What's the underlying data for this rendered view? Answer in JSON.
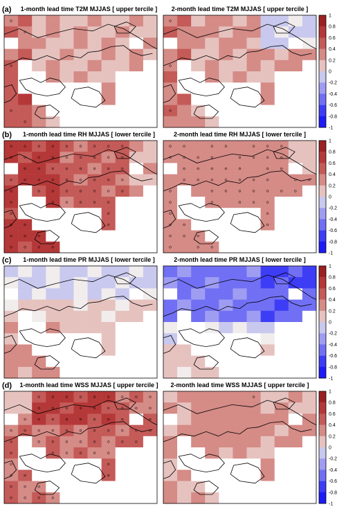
{
  "figure": {
    "rows": [
      {
        "label": "(a)",
        "maps": [
          {
            "title": "1-month lead time T2M MJJAS [ upper tercile ]",
            "pattern": "pos_mid",
            "dots": "sparse"
          },
          {
            "title": "2-month lead time T2M MJJAS [ upper tercile ]",
            "pattern": "pos_mid_e",
            "dots": "sparse"
          }
        ]
      },
      {
        "label": "(b)",
        "maps": [
          {
            "title": "1-month lead time RH MJJAS [ lower tercile ]",
            "pattern": "pos_strong",
            "dots": "dense"
          },
          {
            "title": "2-month lead time RH MJJAS [ lower tercile ]",
            "pattern": "pos_med",
            "dots": "dense"
          }
        ]
      },
      {
        "label": "(c)",
        "maps": [
          {
            "title": "1-month lead time PR MJJAS [ lower tercile ]",
            "pattern": "weak_mixed",
            "dots": "few"
          },
          {
            "title": "2-month lead time PR MJJAS [ lower tercile ]",
            "pattern": "neg_strong",
            "dots": "few"
          }
        ]
      },
      {
        "label": "(d)",
        "maps": [
          {
            "title": "1-month lead time WSS MJJAS [ upper tercile ]",
            "pattern": "pos_strong_n",
            "dots": "dense"
          },
          {
            "title": "2-month lead time WSS MJJAS [ upper tercile ]",
            "pattern": "pos_mid2",
            "dots": "few"
          }
        ]
      }
    ],
    "colorbar": {
      "ticks": [
        "1",
        "0.8",
        "0.6",
        "0.4",
        "0.2",
        "0",
        "-0.2",
        "-0.4",
        "-0.6",
        "-0.8",
        "-1"
      ],
      "colors": [
        "#9b2121",
        "#b53838",
        "#c45b58",
        "#d58b86",
        "#e6c2bf",
        "#f1eded",
        "#c9c8ee",
        "#9f9df2",
        "#7170f4",
        "#3e3df6",
        "#1d1cf8"
      ]
    }
  }
}
